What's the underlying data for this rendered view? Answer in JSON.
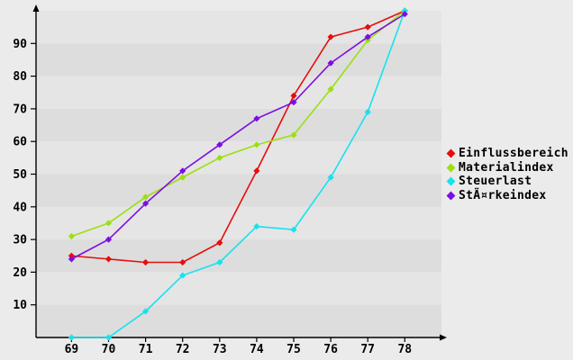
{
  "page": {
    "background_color": "#ebebeb"
  },
  "chart_data": {
    "type": "line",
    "title": "",
    "xlabel": "",
    "ylabel": "",
    "x": [
      69,
      70,
      71,
      72,
      73,
      74,
      75,
      76,
      77,
      78
    ],
    "series": [
      {
        "name": "Einflussbereich",
        "color": "#e60d0d",
        "values": [
          25,
          24,
          23,
          23,
          29,
          51,
          74,
          92,
          95,
          100
        ]
      },
      {
        "name": "Materialindex",
        "color": "#9cdf10",
        "values": [
          31,
          35,
          43,
          49,
          55,
          59,
          62,
          76,
          91,
          100
        ]
      },
      {
        "name": "Steuerlast",
        "color": "#17e2ee",
        "values": [
          0,
          0,
          8,
          19,
          23,
          34,
          33,
          49,
          69,
          100
        ]
      },
      {
        "name": "StÃ¤rkeindex",
        "color": "#7d0de4",
        "values": [
          24,
          30,
          41,
          51,
          59,
          67,
          72,
          84,
          92,
          99
        ]
      }
    ],
    "y_ticks": [
      10,
      20,
      30,
      40,
      50,
      60,
      70,
      80,
      90
    ],
    "ylim": [
      0,
      100
    ],
    "marker": "diamond",
    "legend_position": "right",
    "grid": "alternating-horizontal-bands",
    "band_color_dark": "#dddddd",
    "band_color_light": "#e5e5e5",
    "axis_color": "#000000",
    "tick_label_color": "#000000"
  }
}
